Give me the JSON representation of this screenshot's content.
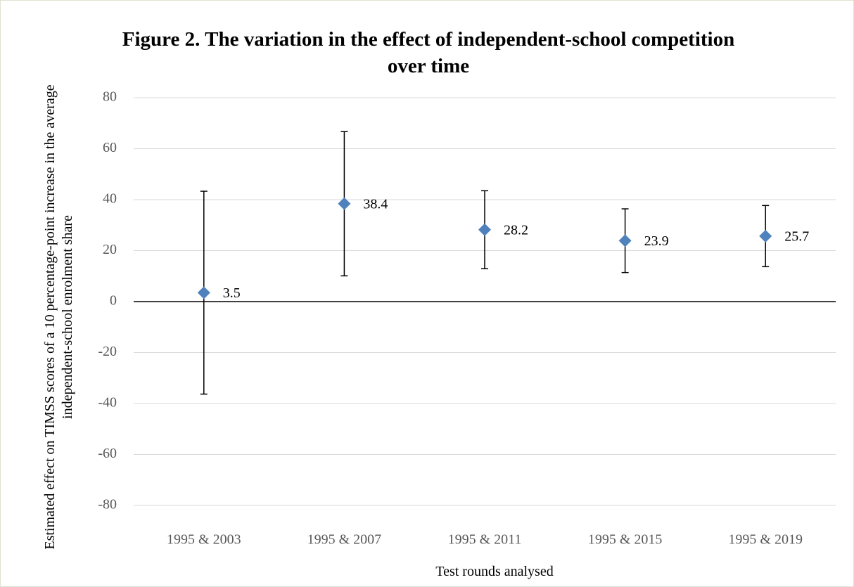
{
  "chart_data": {
    "type": "errorbar-scatter",
    "title": "Figure 2. The variation in the effect of independent-school competition over time",
    "x_label": "Test rounds analysed",
    "y_label": "Estimated effect on TIMSS scores of a 10 percentage-point increase in the average independent-school enrolment share",
    "categories": [
      "1995 & 2003",
      "1995 & 2007",
      "1995 & 2011",
      "1995 & 2015",
      "1995 & 2019"
    ],
    "values": [
      3.5,
      38.4,
      28.2,
      23.9,
      25.7
    ],
    "errors": [
      39.8,
      28.3,
      15.3,
      12.5,
      12.0
    ],
    "color": "#4f81bd",
    "ylim": [
      -80,
      80
    ],
    "yticks": [
      -80,
      -60,
      -40,
      -20,
      0,
      20,
      40,
      60,
      80
    ],
    "grid": true
  }
}
